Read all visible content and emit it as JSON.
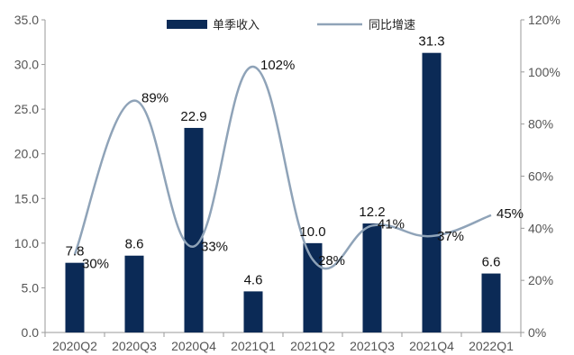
{
  "chart_data": {
    "type": "bar",
    "categories": [
      "2020Q2",
      "2020Q3",
      "2020Q4",
      "2021Q1",
      "2021Q2",
      "2021Q3",
      "2021Q4",
      "2022Q1"
    ],
    "series": [
      {
        "name": "单季收入",
        "type": "bar",
        "axis": "left",
        "color": "#0b2a56",
        "values": [
          7.8,
          8.6,
          22.9,
          4.6,
          10.0,
          12.2,
          31.3,
          6.6
        ],
        "labels": [
          "7.8",
          "8.6",
          "22.9",
          "4.6",
          "10.0",
          "12.2",
          "31.3",
          "6.6"
        ]
      },
      {
        "name": "同比增速",
        "type": "line",
        "axis": "right",
        "color": "#8fa3b8",
        "values": [
          30,
          89,
          33,
          102,
          28,
          41,
          37,
          45
        ],
        "labels": [
          "30%",
          "89%",
          "33%",
          "102%",
          "28%",
          "41%",
          "37%",
          "45%"
        ]
      }
    ],
    "y_left": {
      "min": 0,
      "max": 35,
      "ticks": [
        "0.0",
        "5.0",
        "10.0",
        "15.0",
        "20.0",
        "25.0",
        "30.0",
        "35.0"
      ]
    },
    "y_right": {
      "min": 0,
      "max": 120,
      "ticks": [
        "0%",
        "20%",
        "40%",
        "60%",
        "80%",
        "100%",
        "120%"
      ]
    },
    "legend": {
      "position": "top",
      "items": [
        "单季收入",
        "同比增速"
      ]
    },
    "grid": false
  }
}
